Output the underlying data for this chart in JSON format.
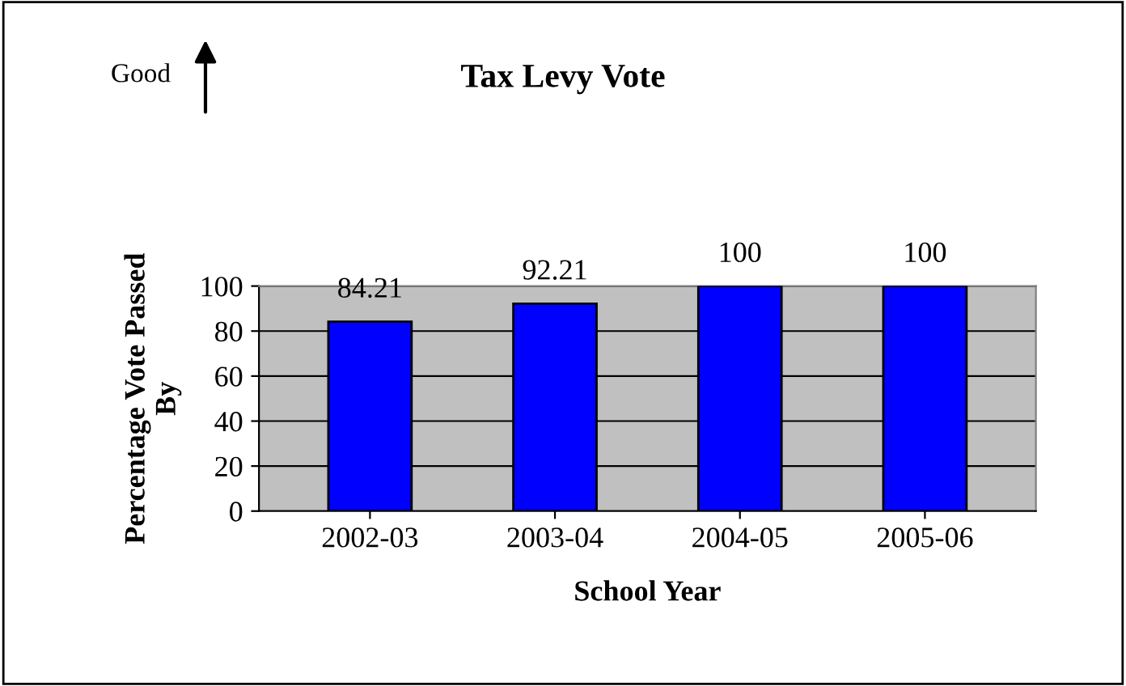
{
  "chart_data": {
    "type": "bar",
    "title": "Tax Levy Vote",
    "xlabel": "School Year",
    "ylabel": "Percentage Vote Passed\nBy",
    "categories": [
      "2002-03",
      "2003-04",
      "2004-05",
      "2005-06"
    ],
    "values": [
      84.21,
      92.21,
      100,
      100
    ],
    "color": "#0000ff",
    "ylim": [
      0,
      100
    ],
    "yticks": [
      0,
      20,
      40,
      60,
      80,
      100
    ],
    "grid": "y",
    "data_labels": true,
    "annotations": [
      "Good"
    ]
  }
}
